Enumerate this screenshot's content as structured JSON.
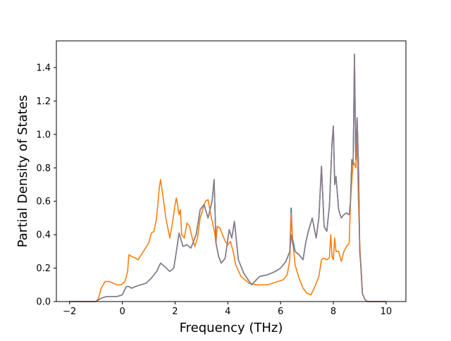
{
  "chart_data": {
    "type": "line",
    "title": "",
    "xlabel": "Frequency (THz)",
    "ylabel": "Partial Density of States",
    "xlim": [
      -2.5,
      10.75
    ],
    "ylim": [
      0.0,
      1.56
    ],
    "xticks": [
      -2,
      0,
      2,
      4,
      6,
      8,
      10
    ],
    "xtick_labels": [
      "−2",
      "0",
      "2",
      "4",
      "6",
      "8",
      "10"
    ],
    "yticks": [
      0.0,
      0.2,
      0.4,
      0.6,
      0.8,
      1.0,
      1.2,
      1.4
    ],
    "ytick_labels": [
      "0.0",
      "0.2",
      "0.4",
      "0.6",
      "0.8",
      "1.0",
      "1.2",
      "1.4"
    ],
    "grid": false,
    "legend": "none",
    "series": [
      {
        "color": "#1f77b4",
        "x": [
          -2.0,
          -1.0,
          -0.8,
          -0.6,
          -0.4,
          -0.2,
          0.0,
          0.15,
          0.25,
          0.35,
          0.5,
          0.7,
          0.9,
          1.1,
          1.3,
          1.45,
          1.6,
          1.8,
          1.95,
          2.05,
          2.15,
          2.3,
          2.45,
          2.6,
          2.8,
          2.95,
          3.1,
          3.25,
          3.4,
          3.48,
          3.55,
          3.65,
          3.75,
          3.9,
          4.05,
          4.15,
          4.25,
          4.4,
          4.6,
          4.9,
          5.2,
          5.5,
          5.8,
          6.0,
          6.2,
          6.35,
          6.4,
          6.45,
          6.55,
          6.7,
          6.85,
          6.95,
          7.05,
          7.2,
          7.35,
          7.45,
          7.55,
          7.65,
          7.75,
          7.85,
          7.95,
          8.0,
          8.05,
          8.1,
          8.2,
          8.3,
          8.4,
          8.5,
          8.6,
          8.65,
          8.7,
          8.75,
          8.8,
          8.85,
          8.9,
          8.95,
          9.0,
          9.05,
          9.1,
          9.2,
          9.3,
          10.0
        ],
        "y": [
          0.0,
          0.0,
          0.02,
          0.03,
          0.03,
          0.03,
          0.04,
          0.09,
          0.09,
          0.08,
          0.09,
          0.1,
          0.11,
          0.14,
          0.18,
          0.23,
          0.21,
          0.18,
          0.2,
          0.3,
          0.41,
          0.33,
          0.34,
          0.32,
          0.4,
          0.55,
          0.58,
          0.5,
          0.6,
          0.73,
          0.35,
          0.27,
          0.23,
          0.26,
          0.43,
          0.38,
          0.48,
          0.25,
          0.17,
          0.1,
          0.15,
          0.16,
          0.18,
          0.2,
          0.24,
          0.3,
          0.56,
          0.38,
          0.3,
          0.28,
          0.25,
          0.35,
          0.42,
          0.5,
          0.38,
          0.5,
          0.81,
          0.45,
          0.42,
          0.57,
          0.95,
          1.05,
          0.7,
          0.75,
          0.55,
          0.5,
          0.52,
          0.53,
          0.52,
          0.6,
          0.85,
          0.82,
          1.48,
          0.85,
          1.1,
          0.83,
          0.3,
          0.2,
          0.05,
          0.01,
          0.0,
          0.0
        ]
      },
      {
        "color": "#ff7f0e",
        "x": [
          -2.0,
          -1.0,
          -0.9,
          -0.8,
          -0.65,
          -0.5,
          -0.35,
          -0.2,
          -0.05,
          0.1,
          0.2,
          0.25,
          0.35,
          0.5,
          0.6,
          0.8,
          1.0,
          1.1,
          1.2,
          1.3,
          1.4,
          1.45,
          1.55,
          1.65,
          1.8,
          1.9,
          2.0,
          2.05,
          2.15,
          2.2,
          2.25,
          2.35,
          2.45,
          2.55,
          2.65,
          2.75,
          2.85,
          2.95,
          3.05,
          3.15,
          3.25,
          3.35,
          3.45,
          3.5,
          3.55,
          3.6,
          3.7,
          3.8,
          3.9,
          4.0,
          4.1,
          4.2,
          4.3,
          4.5,
          4.8,
          5.1,
          5.5,
          5.9,
          6.1,
          6.25,
          6.35,
          6.4,
          6.45,
          6.55,
          6.7,
          6.85,
          7.0,
          7.15,
          7.3,
          7.45,
          7.55,
          7.65,
          7.75,
          7.85,
          7.9,
          7.95,
          8.0,
          8.05,
          8.1,
          8.2,
          8.3,
          8.4,
          8.5,
          8.6,
          8.65,
          8.75,
          8.85,
          8.9,
          8.95,
          9.0,
          9.05,
          9.1,
          9.2,
          9.3,
          10.0
        ],
        "y": [
          0.0,
          0.0,
          0.02,
          0.08,
          0.12,
          0.12,
          0.11,
          0.1,
          0.1,
          0.12,
          0.18,
          0.28,
          0.27,
          0.26,
          0.25,
          0.3,
          0.35,
          0.41,
          0.42,
          0.5,
          0.68,
          0.73,
          0.62,
          0.5,
          0.38,
          0.47,
          0.58,
          0.62,
          0.52,
          0.55,
          0.4,
          0.38,
          0.47,
          0.45,
          0.38,
          0.33,
          0.38,
          0.5,
          0.55,
          0.6,
          0.61,
          0.52,
          0.45,
          0.41,
          0.35,
          0.45,
          0.44,
          0.4,
          0.36,
          0.34,
          0.36,
          0.3,
          0.22,
          0.15,
          0.11,
          0.1,
          0.1,
          0.12,
          0.13,
          0.16,
          0.25,
          0.53,
          0.38,
          0.22,
          0.14,
          0.08,
          0.05,
          0.04,
          0.09,
          0.15,
          0.25,
          0.26,
          0.25,
          0.26,
          0.4,
          0.27,
          0.25,
          0.38,
          0.3,
          0.3,
          0.24,
          0.3,
          0.33,
          0.35,
          0.6,
          0.84,
          0.8,
          0.98,
          0.6,
          0.35,
          0.18,
          0.05,
          0.01,
          0.0,
          0.0
        ]
      },
      {
        "color": "#8c7b87",
        "x": [
          -2.0,
          -1.0,
          -0.8,
          -0.6,
          -0.4,
          -0.2,
          0.0,
          0.15,
          0.25,
          0.35,
          0.5,
          0.7,
          0.9,
          1.1,
          1.3,
          1.45,
          1.6,
          1.8,
          1.95,
          2.05,
          2.15,
          2.3,
          2.45,
          2.6,
          2.8,
          2.95,
          3.1,
          3.25,
          3.4,
          3.48,
          3.55,
          3.65,
          3.75,
          3.9,
          4.05,
          4.15,
          4.25,
          4.4,
          4.6,
          4.9,
          5.2,
          5.5,
          5.8,
          6.0,
          6.2,
          6.35,
          6.4,
          6.45,
          6.55,
          6.7,
          6.85,
          6.95,
          7.05,
          7.2,
          7.35,
          7.45,
          7.55,
          7.65,
          7.75,
          7.85,
          7.95,
          8.0,
          8.05,
          8.1,
          8.2,
          8.3,
          8.4,
          8.5,
          8.6,
          8.65,
          8.7,
          8.75,
          8.8,
          8.85,
          8.9,
          8.95,
          9.0,
          9.05,
          9.1,
          9.2,
          9.3,
          10.0
        ],
        "y": [
          0.0,
          0.0,
          0.02,
          0.03,
          0.03,
          0.03,
          0.04,
          0.09,
          0.09,
          0.08,
          0.09,
          0.1,
          0.11,
          0.14,
          0.18,
          0.23,
          0.21,
          0.18,
          0.2,
          0.3,
          0.41,
          0.33,
          0.34,
          0.32,
          0.4,
          0.55,
          0.58,
          0.5,
          0.6,
          0.73,
          0.35,
          0.27,
          0.23,
          0.26,
          0.43,
          0.38,
          0.48,
          0.25,
          0.17,
          0.1,
          0.15,
          0.16,
          0.18,
          0.2,
          0.24,
          0.3,
          0.4,
          0.35,
          0.3,
          0.28,
          0.25,
          0.35,
          0.42,
          0.5,
          0.38,
          0.5,
          0.81,
          0.45,
          0.42,
          0.57,
          0.95,
          1.05,
          0.7,
          0.75,
          0.55,
          0.5,
          0.52,
          0.53,
          0.52,
          0.6,
          0.85,
          0.82,
          1.48,
          0.85,
          1.1,
          0.83,
          0.3,
          0.2,
          0.05,
          0.01,
          0.0,
          0.0
        ]
      }
    ]
  }
}
